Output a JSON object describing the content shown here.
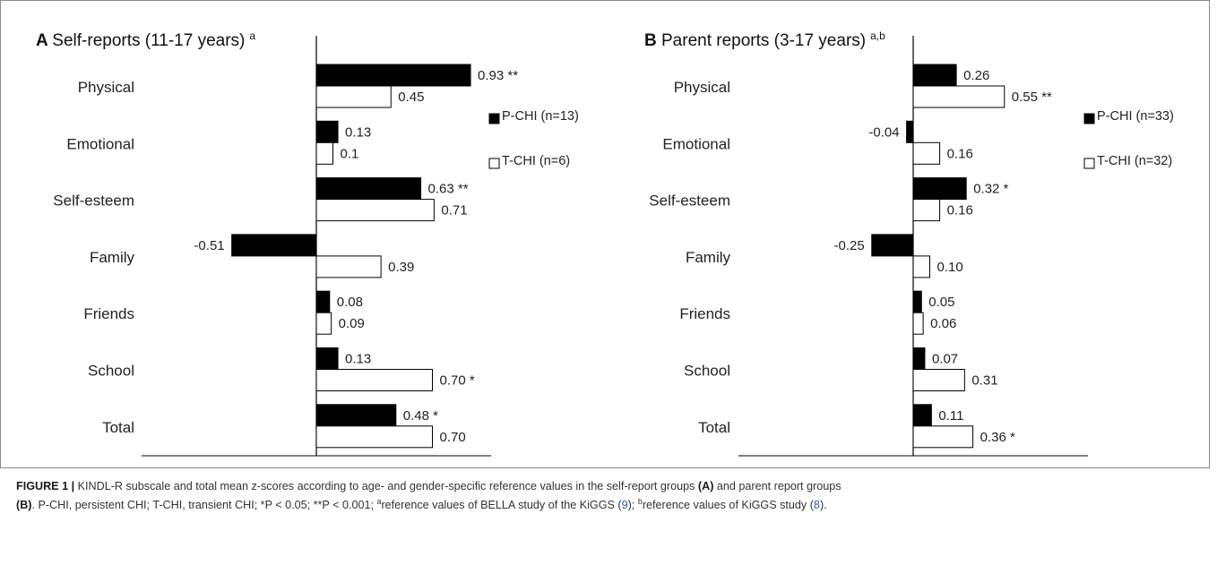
{
  "chart_data": [
    {
      "type": "bar",
      "orientation": "horizontal",
      "panel_letter": "A",
      "title": "Self-reports (11-17 years)",
      "title_superscript": "a",
      "categories": [
        "Physical",
        "Emotional",
        "Self-esteem",
        "Family",
        "Friends",
        "School",
        "Total"
      ],
      "series": [
        {
          "name": "P-CHI (n=13)",
          "color": "#000000",
          "values": [
            0.93,
            0.13,
            0.63,
            -0.51,
            0.08,
            0.13,
            0.48
          ],
          "labels": [
            "0.93 **",
            "0.13",
            "0.63 **",
            "-0.51",
            "0.08",
            "0.13",
            "0.48 *"
          ]
        },
        {
          "name": "T-CHI (n=6)",
          "color": "#ffffff",
          "values": [
            0.45,
            0.1,
            0.71,
            0.39,
            0.09,
            0.7,
            0.7
          ],
          "labels": [
            "0.45",
            "0.1",
            "0.71",
            "0.39",
            "0.09",
            "0.70 *",
            "0.70"
          ]
        }
      ],
      "xlim": [
        -1.0,
        1.0
      ],
      "xticks": [
        -1.0,
        -0.5,
        0.0,
        0.5,
        1.0
      ],
      "xtick_labels": [
        "-1.0",
        "-0.5",
        "0.0",
        "0.5",
        "1.0"
      ],
      "legend_position": "right",
      "grid": false
    },
    {
      "type": "bar",
      "orientation": "horizontal",
      "panel_letter": "B",
      "title": "Parent  reports (3-17 years)",
      "title_superscript": "a,b",
      "categories": [
        "Physical",
        "Emotional",
        "Self-esteem",
        "Family",
        "Friends",
        "School",
        "Total"
      ],
      "series": [
        {
          "name": "P-CHI (n=33)",
          "color": "#000000",
          "values": [
            0.26,
            -0.04,
            0.32,
            -0.25,
            0.05,
            0.07,
            0.11
          ],
          "labels": [
            "0.26",
            "-0.04",
            "0.32 *",
            "-0.25",
            "0.05",
            "0.07",
            "0.11"
          ]
        },
        {
          "name": "T-CHI (n=32)",
          "color": "#ffffff",
          "values": [
            0.55,
            0.16,
            0.16,
            0.1,
            0.06,
            0.31,
            0.36
          ],
          "labels": [
            "0.55 **",
            "0.16",
            "0.16",
            "0.10",
            "0.06",
            "0.31",
            "0.36 *"
          ]
        }
      ],
      "xlim": [
        -1,
        1
      ],
      "xticks": [
        -1,
        -0.5,
        0,
        0.5,
        1
      ],
      "xtick_labels": [
        "-1",
        "-0.5",
        "0",
        "0.5",
        "1"
      ],
      "legend_position": "right",
      "grid": false
    }
  ],
  "caption": {
    "figure_label": "FIGURE 1 |",
    "line1_text": " KINDL-R subscale and total mean z-scores according to age- and gender-specific reference values in the self-report groups ",
    "line1_tag": "(A)",
    "line1_tail": " and parent report groups",
    "line2_tag": "(B)",
    "line2_text": ". P-CHI, persistent CHI; T-CHI, transient CHI; *P < 0.05; **P < 0.001; ",
    "sup_a": "a",
    "line2_ref_a_text": "reference values of BELLA study of the KiGGS (",
    "ref_a_number": "9",
    "line2_mid": "); ",
    "sup_b": "b",
    "line2_ref_b_text": "reference values of KiGGS study (",
    "ref_b_number": "8",
    "line2_end": ")."
  }
}
